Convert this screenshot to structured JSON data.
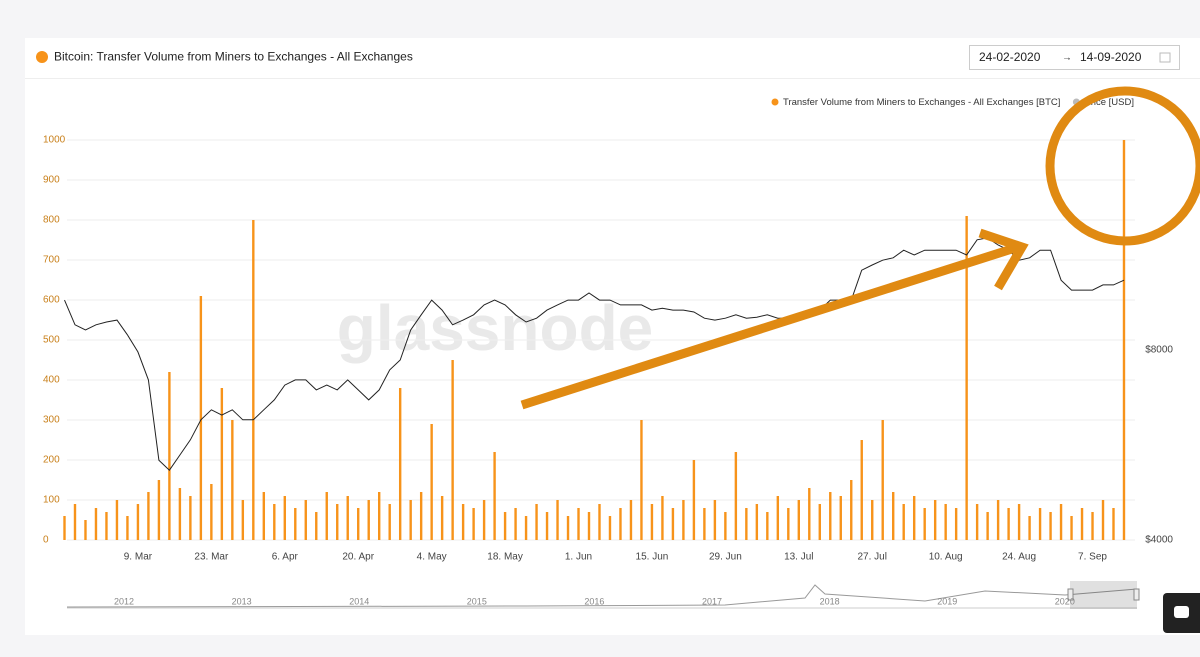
{
  "chart_data": {
    "type": "combo",
    "title": "Bitcoin: Transfer Volume from Miners to Exchanges - All Exchanges",
    "date_range": [
      "24-02-2020",
      "14-09-2020"
    ],
    "watermark": "glassnode",
    "categories": [
      null,
      null,
      null,
      null,
      null,
      null,
      null,
      "9. Mar",
      null,
      null,
      null,
      null,
      null,
      null,
      "23. Mar",
      null,
      null,
      null,
      null,
      null,
      null,
      "6. Apr",
      null,
      null,
      null,
      null,
      null,
      null,
      "20. Apr",
      null,
      null,
      null,
      null,
      null,
      null,
      "4. May",
      null,
      null,
      null,
      null,
      null,
      null,
      "18. May",
      null,
      null,
      null,
      null,
      null,
      null,
      "1. Jun",
      null,
      null,
      null,
      null,
      null,
      null,
      "15. Jun",
      null,
      null,
      null,
      null,
      null,
      null,
      "29. Jun",
      null,
      null,
      null,
      null,
      null,
      null,
      "13. Jul",
      null,
      null,
      null,
      null,
      null,
      null,
      "27. Jul",
      null,
      null,
      null,
      null,
      null,
      null,
      "10. Aug",
      null,
      null,
      null,
      null,
      null,
      null,
      "24. Aug",
      null,
      null,
      null,
      null,
      null,
      null,
      "7. Sep",
      null,
      null,
      null
    ],
    "series": [
      {
        "name": "Transfer Volume from Miners to Exchanges - All Exchanges [BTC]",
        "type": "bar",
        "color": "#f7931a",
        "values": [
          60,
          90,
          50,
          80,
          70,
          100,
          60,
          90,
          120,
          150,
          420,
          130,
          110,
          610,
          140,
          380,
          300,
          100,
          800,
          120,
          90,
          110,
          80,
          100,
          70,
          120,
          90,
          110,
          80,
          100,
          120,
          90,
          380,
          100,
          120,
          290,
          110,
          450,
          90,
          80,
          100,
          220,
          70,
          80,
          60,
          90,
          70,
          100,
          60,
          80,
          70,
          90,
          60,
          80,
          100,
          300,
          90,
          110,
          80,
          100,
          200,
          80,
          100,
          70,
          220,
          80,
          90,
          70,
          110,
          80,
          100,
          130,
          90,
          120,
          110,
          150,
          250,
          100,
          300,
          120,
          90,
          110,
          80,
          100,
          90,
          80,
          810,
          90,
          70,
          100,
          80,
          90,
          60,
          80,
          70,
          90,
          60,
          80,
          70,
          100,
          80,
          1000
        ]
      },
      {
        "name": "Price [USD]",
        "type": "line",
        "color": "#222222",
        "axis": "y2",
        "values": [
          9050,
          8530,
          8420,
          8530,
          8590,
          8630,
          8320,
          7960,
          7370,
          5680,
          5470,
          5790,
          6110,
          6530,
          6740,
          6630,
          6740,
          6530,
          6530,
          6740,
          6950,
          7260,
          7370,
          7370,
          7160,
          7260,
          7160,
          7370,
          7160,
          6950,
          7160,
          7580,
          7790,
          8420,
          8740,
          9050,
          8840,
          8530,
          8630,
          8740,
          8950,
          9050,
          8950,
          8740,
          8590,
          8670,
          8840,
          8950,
          9050,
          9050,
          9200,
          9050,
          9050,
          8950,
          8950,
          8950,
          8840,
          8880,
          8840,
          8840,
          8800,
          8670,
          8630,
          8670,
          8740,
          8670,
          8690,
          8740,
          8670,
          8670,
          8670,
          8740,
          8840,
          9050,
          9050,
          9050,
          9680,
          9790,
          9890,
          9940,
          10100,
          10000,
          10100,
          10100,
          10100,
          10100,
          10000,
          10320,
          10360,
          10210,
          10100,
          9890,
          9940,
          10100,
          10100,
          9470,
          9260,
          9260,
          9260,
          9370,
          9370,
          9470
        ]
      }
    ],
    "ylim": [
      0,
      1000
    ],
    "yticks": [
      0,
      100,
      200,
      300,
      400,
      500,
      600,
      700,
      800,
      900,
      1000
    ],
    "y2lim": [
      4000,
      12421
    ],
    "y2ticks": [
      {
        "value": 4000,
        "label": "$4000"
      },
      {
        "value": 8000,
        "label": "$8000"
      }
    ],
    "grid": true,
    "legend": "top-right",
    "navigator_labels": [
      "2012",
      "2013",
      "2014",
      "2015",
      "2016",
      "2017",
      "2018",
      "2019",
      "2020"
    ]
  }
}
